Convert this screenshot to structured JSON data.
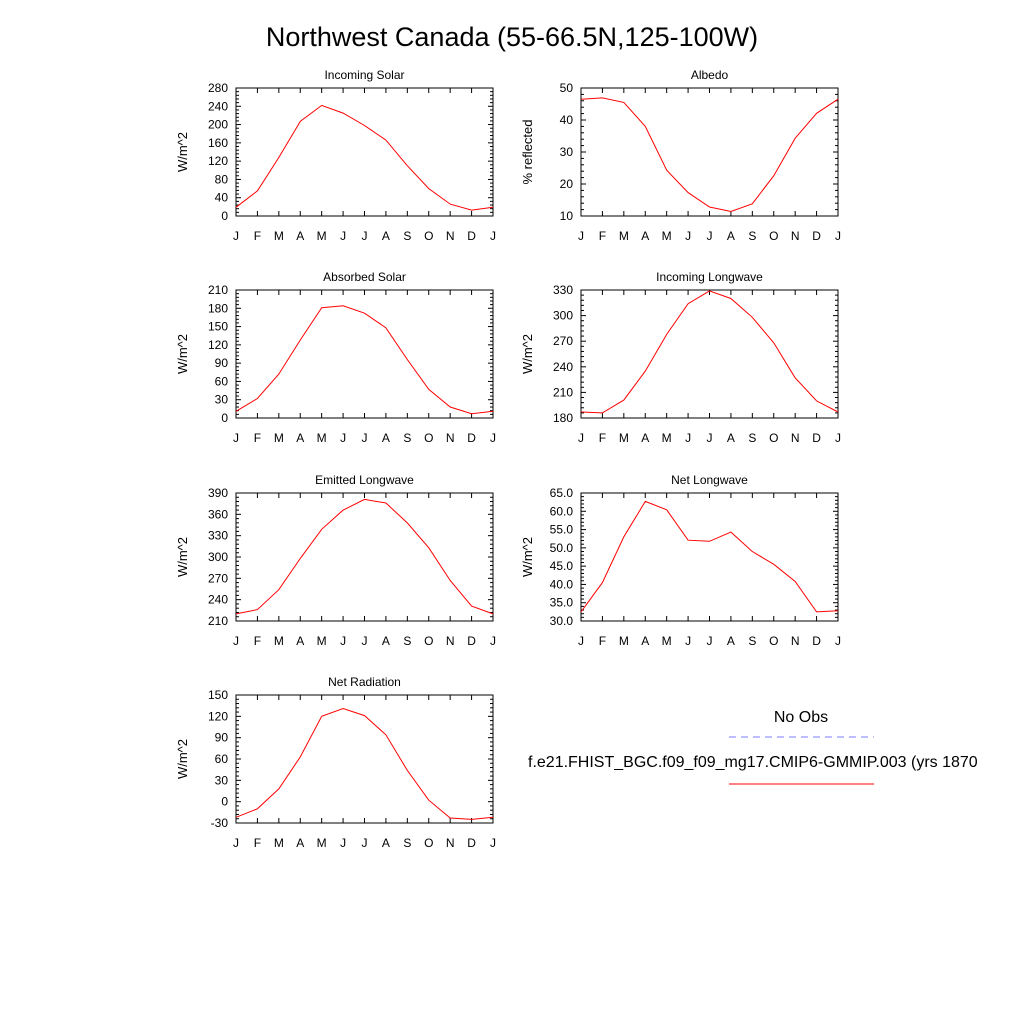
{
  "title": "Northwest Canada (55-66.5N,125-100W)",
  "legend": {
    "obs_label": "No Obs",
    "obs_color": "#7b7bff",
    "model_label": "f.e21.FHIST_BGC.f09_f09_mg17.CMIP6-GMMIP.003 (yrs 1870",
    "model_color": "#ff0000"
  },
  "chart_data": [
    {
      "type": "line",
      "title": "Incoming Solar",
      "ylabel": "W/m^2",
      "categories": [
        "J",
        "F",
        "M",
        "A",
        "M",
        "J",
        "J",
        "A",
        "S",
        "O",
        "N",
        "D",
        "J"
      ],
      "ylim": [
        0,
        280
      ],
      "yticks": [
        0,
        40,
        80,
        120,
        160,
        200,
        240,
        280
      ],
      "ytick_labels": [
        "0",
        "40",
        "80",
        "120",
        "160",
        "200",
        "240",
        "280"
      ],
      "series": [
        {
          "values": [
            19,
            55,
            128,
            207,
            242,
            225,
            198,
            166,
            110,
            60,
            26,
            13,
            19
          ]
        }
      ]
    },
    {
      "type": "line",
      "title": "Albedo",
      "ylabel": "% reflected",
      "categories": [
        "J",
        "F",
        "M",
        "A",
        "M",
        "J",
        "J",
        "A",
        "S",
        "O",
        "N",
        "D",
        "J"
      ],
      "ylim": [
        10,
        50
      ],
      "yticks": [
        10,
        20,
        30,
        40,
        50
      ],
      "ytick_labels": [
        "10",
        "20",
        "30",
        "40",
        "50"
      ],
      "series": [
        {
          "values": [
            46.5,
            46.9,
            45.5,
            38,
            24.3,
            17.3,
            12.8,
            11.4,
            13.8,
            22.6,
            34.3,
            42.1,
            46.5
          ]
        }
      ]
    },
    {
      "type": "line",
      "title": "Absorbed Solar",
      "ylabel": "W/m^2",
      "categories": [
        "J",
        "F",
        "M",
        "A",
        "M",
        "J",
        "J",
        "A",
        "S",
        "O",
        "N",
        "D",
        "J"
      ],
      "ylim": [
        0,
        210
      ],
      "yticks": [
        0,
        30,
        60,
        90,
        120,
        150,
        180,
        210
      ],
      "ytick_labels": [
        "0",
        "30",
        "60",
        "90",
        "120",
        "150",
        "180",
        "210"
      ],
      "series": [
        {
          "values": [
            11,
            32,
            72,
            128,
            181,
            184,
            172,
            148,
            96,
            47,
            18,
            7,
            11
          ]
        }
      ]
    },
    {
      "type": "line",
      "title": "Incoming Longwave",
      "ylabel": "W/m^2",
      "categories": [
        "J",
        "F",
        "M",
        "A",
        "M",
        "J",
        "J",
        "A",
        "S",
        "O",
        "N",
        "D",
        "J"
      ],
      "ylim": [
        180,
        330
      ],
      "yticks": [
        180,
        210,
        240,
        270,
        300,
        330
      ],
      "ytick_labels": [
        "180",
        "210",
        "240",
        "270",
        "300",
        "330"
      ],
      "series": [
        {
          "values": [
            187,
            186,
            201,
            235,
            278,
            314,
            329,
            320,
            298,
            268,
            227,
            200,
            187
          ]
        }
      ]
    },
    {
      "type": "line",
      "title": "Emitted Longwave",
      "ylabel": "W/m^2",
      "categories": [
        "J",
        "F",
        "M",
        "A",
        "M",
        "J",
        "J",
        "A",
        "S",
        "O",
        "N",
        "D",
        "J"
      ],
      "ylim": [
        210,
        390
      ],
      "yticks": [
        210,
        240,
        270,
        300,
        330,
        360,
        390
      ],
      "ytick_labels": [
        "210",
        "240",
        "270",
        "300",
        "330",
        "360",
        "390"
      ],
      "series": [
        {
          "values": [
            220,
            226,
            254,
            298,
            339,
            366,
            381,
            376,
            348,
            313,
            267,
            231,
            220
          ]
        }
      ]
    },
    {
      "type": "line",
      "title": "Net Longwave",
      "ylabel": "W/m^2",
      "categories": [
        "J",
        "F",
        "M",
        "A",
        "M",
        "J",
        "J",
        "A",
        "S",
        "O",
        "N",
        "D",
        "J"
      ],
      "ylim": [
        30,
        65
      ],
      "yticks": [
        30,
        35,
        40,
        45,
        50,
        55,
        60,
        65
      ],
      "ytick_labels": [
        "30.0",
        "35.0",
        "40.0",
        "45.0",
        "50.0",
        "55.0",
        "60.0",
        "65.0"
      ],
      "series": [
        {
          "values": [
            32.5,
            40.5,
            53,
            62.7,
            60.4,
            52.1,
            51.8,
            54.3,
            49,
            45.5,
            40.8,
            32.5,
            32.8
          ]
        }
      ]
    },
    {
      "type": "line",
      "title": "Net Radiation",
      "ylabel": "W/m^2",
      "categories": [
        "J",
        "F",
        "M",
        "A",
        "M",
        "J",
        "J",
        "A",
        "S",
        "O",
        "N",
        "D",
        "J"
      ],
      "ylim": [
        -30,
        150
      ],
      "yticks": [
        -30,
        0,
        30,
        60,
        90,
        120,
        150
      ],
      "ytick_labels": [
        "-30",
        "0",
        "30",
        "60",
        "90",
        "120",
        "150"
      ],
      "series": [
        {
          "values": [
            -22,
            -10,
            18,
            63,
            120,
            131,
            121,
            94,
            44,
            2,
            -23,
            -25,
            -22
          ]
        }
      ]
    }
  ]
}
